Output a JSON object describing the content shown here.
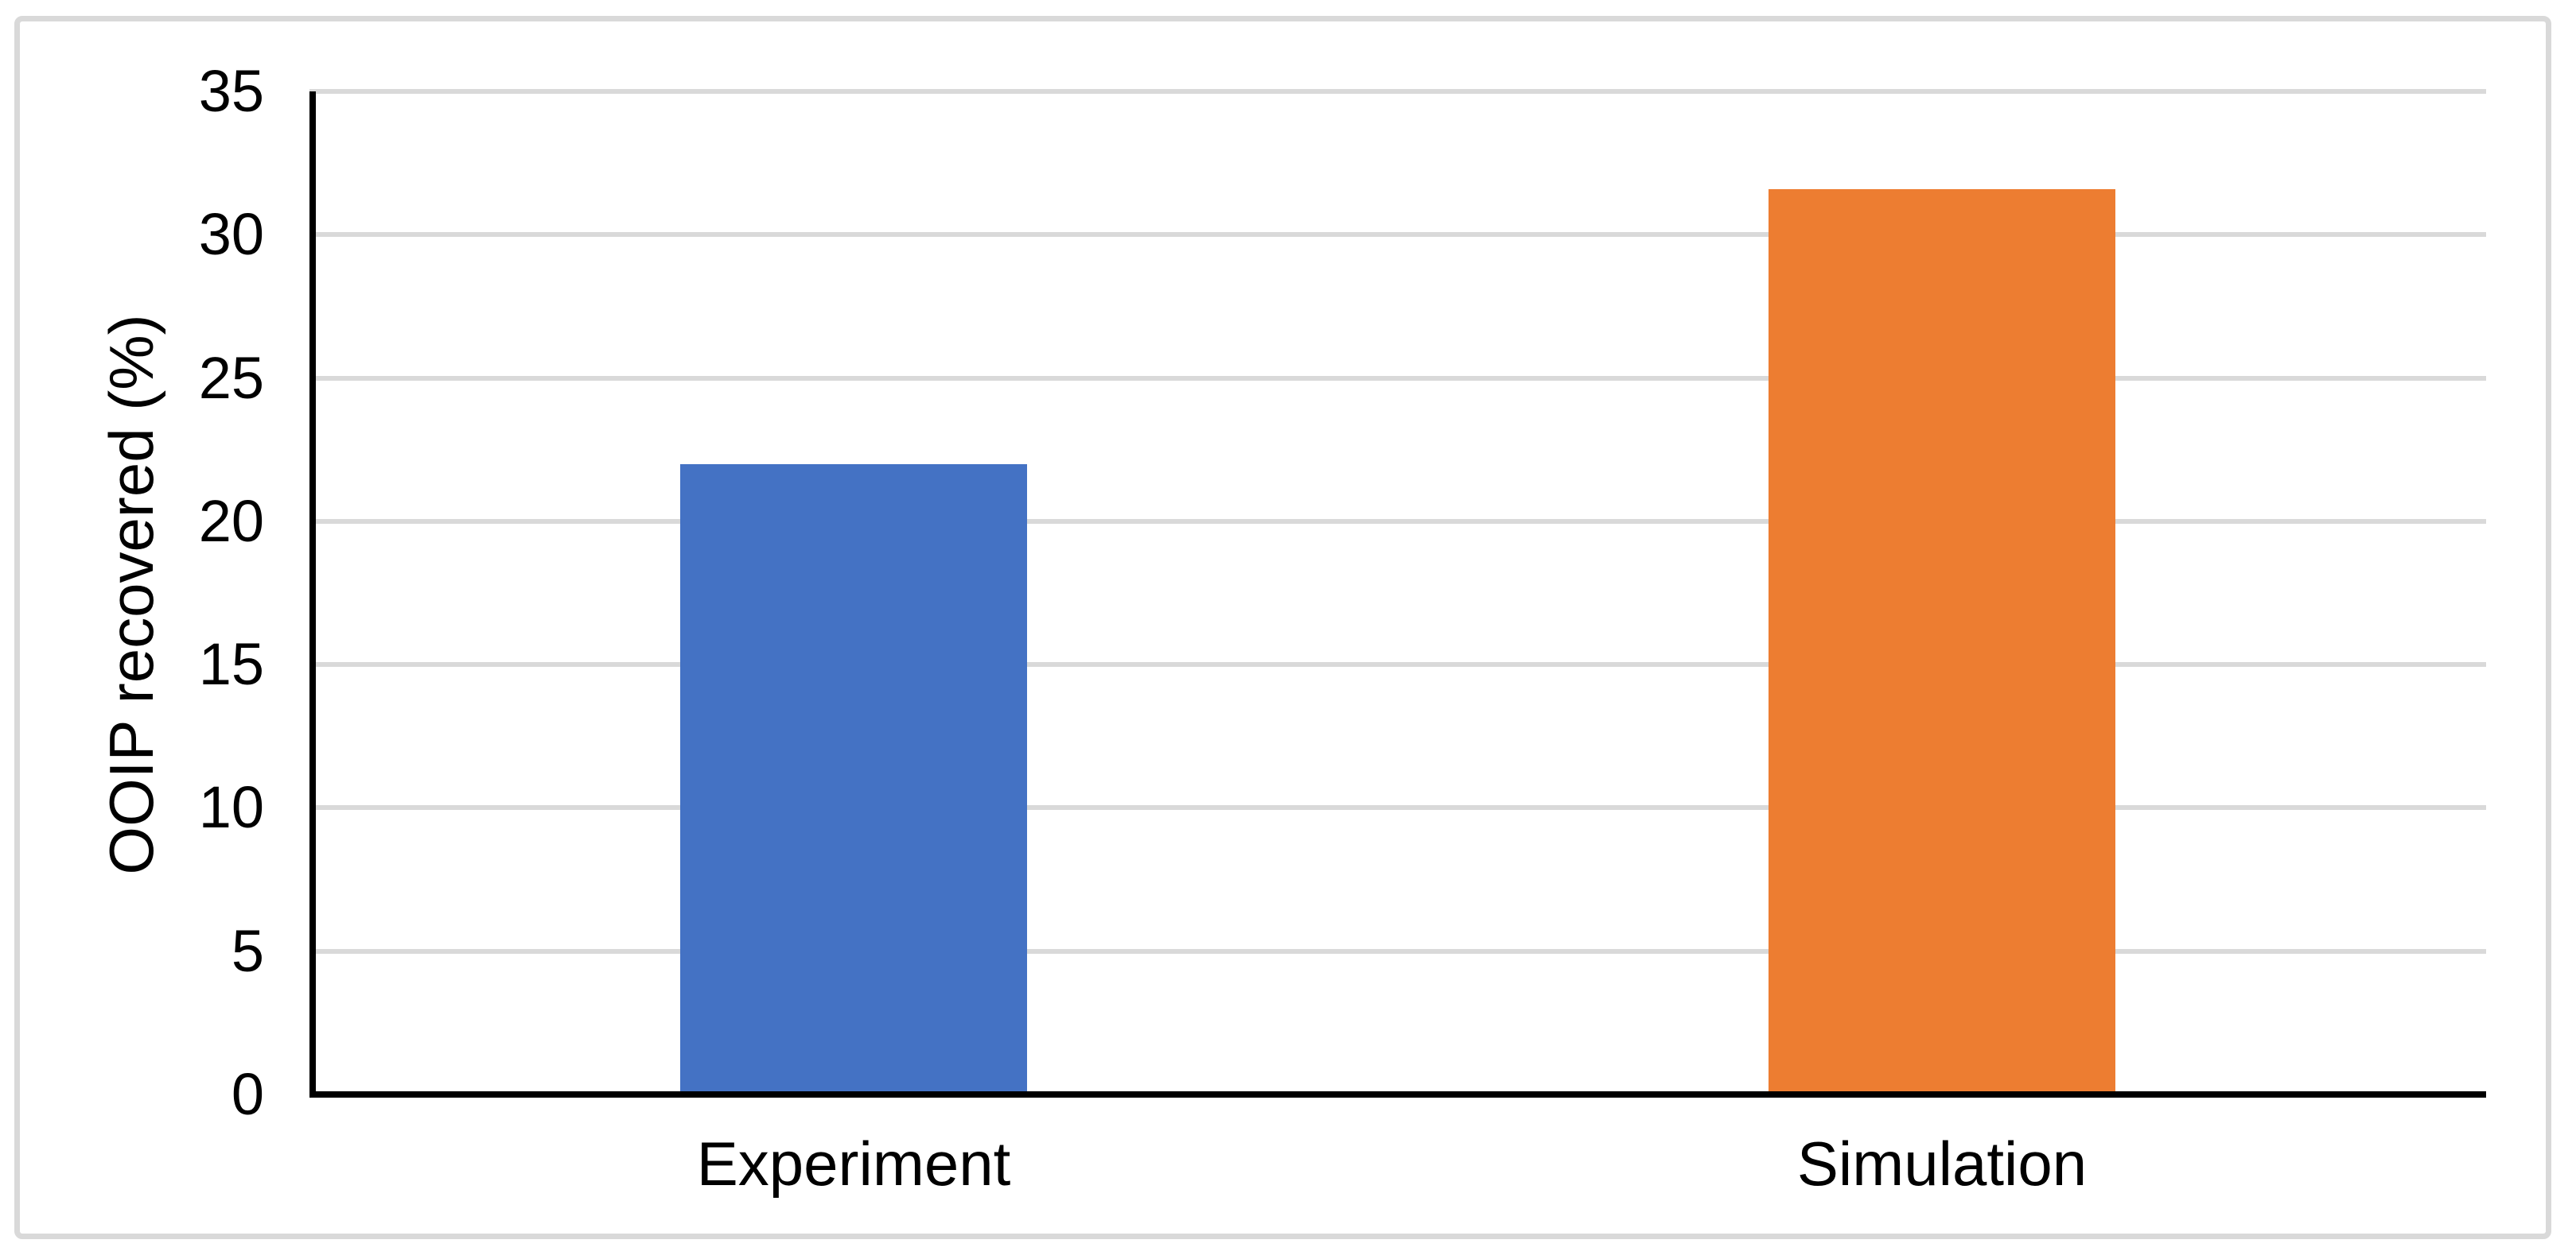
{
  "chart_data": {
    "type": "bar",
    "categories": [
      "Experiment",
      "Simulation"
    ],
    "values": [
      22,
      31.6
    ],
    "bar_colors": [
      "#4472C4",
      "#ED7D31"
    ],
    "title": "",
    "xlabel": "",
    "ylabel": "OOIP recovered (%)",
    "ylim": [
      0,
      35
    ],
    "yticks": [
      0,
      5,
      10,
      15,
      20,
      25,
      30,
      35
    ],
    "grid": "horizontal",
    "legend": "none"
  },
  "style_colors": {
    "background": "#FFFFFF",
    "frame_border": "#D9D9D9",
    "gridline": "#D9D9D9",
    "axis_line": "#000000",
    "text": "#000000"
  }
}
